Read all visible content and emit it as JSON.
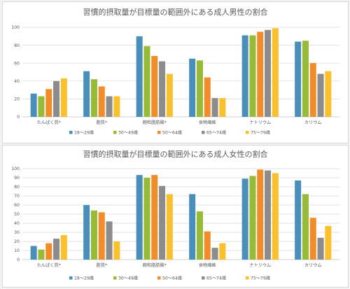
{
  "chart_data": [
    {
      "type": "bar",
      "title": "習慣的摂取量が目標量の範囲外にある成人男性の割合",
      "categories": [
        "たんぱく質*",
        "脂質*",
        "飽和脂肪酸*",
        "食物繊維",
        "ナトリウム",
        "カリウム"
      ],
      "series": [
        {
          "name": "18～29歳",
          "values": [
            26,
            51,
            90,
            65,
            91,
            84
          ]
        },
        {
          "name": "30～49歳",
          "values": [
            23,
            42,
            79,
            63,
            91,
            85
          ]
        },
        {
          "name": "50～64歳",
          "values": [
            31,
            34,
            68,
            44,
            95,
            60
          ]
        },
        {
          "name": "65～74歳",
          "values": [
            40,
            23,
            62,
            21,
            97,
            48
          ]
        },
        {
          "name": "75～79歳",
          "values": [
            43,
            23,
            48,
            21,
            99,
            51
          ]
        }
      ],
      "ylim": [
        0,
        100
      ],
      "yticks": [
        0,
        20,
        40,
        60,
        80,
        100
      ],
      "grid": true,
      "legend": "bottom"
    },
    {
      "type": "bar",
      "title": "習慣的摂取量が目標量の範囲外にある成人女性の割合",
      "categories": [
        "たんぱく質*",
        "脂質*",
        "飽和脂肪酸*",
        "食物繊維",
        "ナトリウム",
        "カリウム"
      ],
      "series": [
        {
          "name": "18～29歳",
          "values": [
            15,
            60,
            93,
            72,
            89,
            87
          ]
        },
        {
          "name": "30～49歳",
          "values": [
            11,
            54,
            90,
            53,
            92,
            72
          ]
        },
        {
          "name": "50～64歳",
          "values": [
            18,
            52,
            93,
            31,
            99,
            46
          ]
        },
        {
          "name": "65～74歳",
          "values": [
            23,
            42,
            81,
            13,
            98,
            24
          ]
        },
        {
          "name": "75～79歳",
          "values": [
            27,
            20,
            72,
            18,
            95,
            37
          ]
        }
      ],
      "ylim": [
        0,
        100
      ],
      "yticks": [
        0,
        10,
        20,
        30,
        40,
        50,
        60,
        70,
        80,
        90,
        100
      ],
      "grid": true,
      "legend": "bottom"
    }
  ],
  "colors": [
    "#4a8fba",
    "#98bb37",
    "#f18c2a",
    "#8c8c8c",
    "#fbc12c"
  ],
  "gridColor": "#d9d9d9",
  "axisColor": "#bfbfbf"
}
